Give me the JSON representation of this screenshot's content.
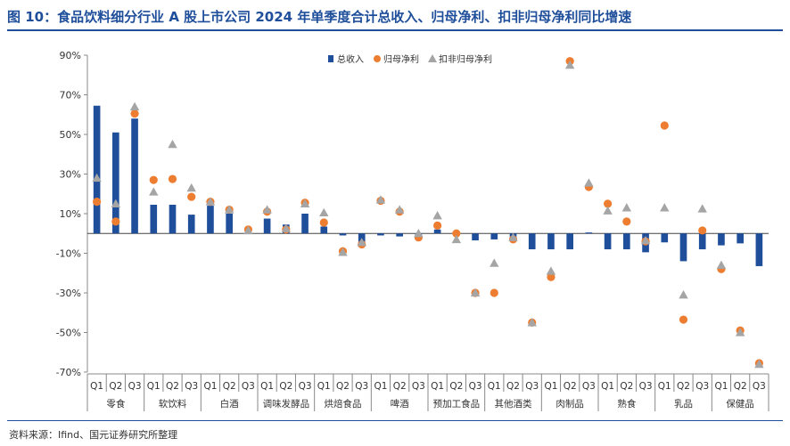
{
  "page": {
    "title": "图 10：食品饮料细分行业 A 股上市公司 2024 年单季度合计总收入、归母净利、扣非归母净利同比增速",
    "source": "资料来源：Ifind、国元证券研究所整理"
  },
  "chart_data": {
    "type": "bar",
    "ylim": [
      -70,
      90
    ],
    "yticks": [
      "90%",
      "70%",
      "50%",
      "30%",
      "10%",
      "-10%",
      "-30%",
      "-50%",
      "-70%"
    ],
    "ytick_values": [
      90,
      70,
      50,
      30,
      10,
      -10,
      -30,
      -50,
      -70
    ],
    "legend_position": "top-center",
    "colors": {
      "revenue": "#1f4e9a",
      "net_profit": "#ed7d31",
      "deducted": "#a5a5a5"
    },
    "quarters": [
      "Q1",
      "Q2",
      "Q3"
    ],
    "groups": [
      "零食",
      "软饮料",
      "白酒",
      "调味发酵品",
      "烘焙食品",
      "啤酒",
      "预加工食品",
      "其他酒类",
      "肉制品",
      "熟食",
      "乳品",
      "保健品"
    ],
    "series": [
      {
        "name": "总收入",
        "marker": "bar",
        "values": [
          64.5,
          51,
          58,
          14.5,
          14.5,
          9.5,
          14,
          10,
          0,
          7.5,
          4.5,
          10,
          3.5,
          -1,
          -5,
          -1,
          -1.5,
          -1.5,
          2,
          -0.5,
          -3.5,
          -3,
          -3,
          -8,
          -8,
          -8,
          0.5,
          -8,
          -8,
          -9.5,
          -4.5,
          -14,
          -8,
          -6,
          -5,
          -16.5
        ]
      },
      {
        "name": "归母净利",
        "marker": "circle",
        "values": [
          16,
          6,
          60.5,
          27,
          27.5,
          18.5,
          16,
          12,
          2,
          11,
          2,
          15.5,
          5.5,
          -9,
          -5.5,
          16.5,
          11,
          -2,
          4,
          0,
          -30,
          -30,
          -3,
          -45,
          -22,
          87,
          23.5,
          15,
          6,
          -4,
          54.5,
          -43.5,
          1.5,
          -18,
          -49,
          -65.5
        ]
      },
      {
        "name": "扣非归母净利",
        "marker": "triangle",
        "values": [
          28,
          15,
          64,
          21,
          45,
          23,
          16,
          12,
          1.5,
          12,
          2.5,
          15,
          10.5,
          -9.5,
          -4.5,
          17,
          12,
          0,
          9,
          -3,
          -30,
          -15,
          -2,
          -45,
          -19,
          85,
          25.5,
          11.5,
          13,
          -3.5,
          13,
          -31,
          12.5,
          -16,
          -50,
          -66
        ]
      }
    ]
  }
}
